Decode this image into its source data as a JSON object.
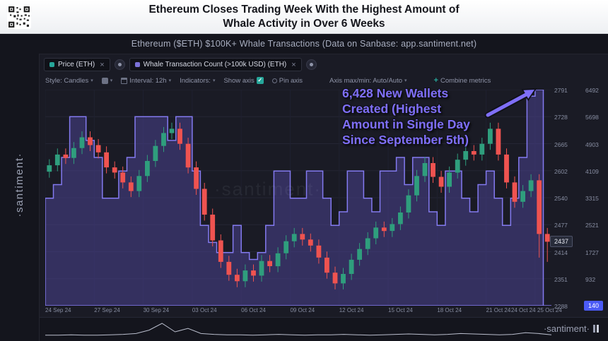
{
  "header": {
    "title_line1": "Ethereum Closes Trading Week With the Highest Amount of",
    "title_line2": "Whale Activity in Over 6 Weeks"
  },
  "subtitle": "Ethereum ($ETH) $100K+ Whale Transactions (Data on Sanbase: app.santiment.net)",
  "sidebar": {
    "brand": "·santiment·"
  },
  "watermark": "·santiment·",
  "footer": {
    "brand": "·santiment·"
  },
  "icons": {
    "caret": "▾",
    "close": "×",
    "check": "✓",
    "plus": "+"
  },
  "metric_chips": [
    {
      "label": "Price (ETH)",
      "color": "#26a69a"
    },
    {
      "label": "Whale Transaction Count (>100k USD) (ETH)",
      "color": "#7b72d9"
    }
  ],
  "toolbar": {
    "style": "Style: Candles",
    "interval": "Interval: 12h",
    "indicators": "Indicators:",
    "show_axis": "Show axis",
    "pin_axis": "Pin axis",
    "axis_maxmin": "Axis max/min: Auto/Auto",
    "combine": "Combine metrics"
  },
  "annotation": {
    "lines": [
      "6,428 New Wallets",
      "Created (Highest",
      "Amount in Single Day",
      "Since September 5th)"
    ],
    "color": "#7f6ff8"
  },
  "badges": {
    "price": "2437",
    "count": "140"
  },
  "colors": {
    "count_badge": "#4b5bf7",
    "checkbox": "#26a69a",
    "background": "#1a1b25"
  },
  "axes": {
    "price_ticks": [
      "2791",
      "2728",
      "2665",
      "2602",
      "2540",
      "2477",
      "2414",
      "2351",
      "2288"
    ],
    "count_ticks": [
      "6492",
      "5698",
      "4903",
      "4109",
      "3315",
      "2521",
      "1727",
      "932",
      "140"
    ],
    "x_ticks": [
      "24 Sep 24",
      "27 Sep 24",
      "30 Sep 24",
      "03 Oct 24",
      "06 Oct 24",
      "09 Oct 24",
      "12 Oct 24",
      "15 Oct 24",
      "18 Oct 24",
      "21 Oct 24",
      "24 Oct 24",
      "25 Oct 24"
    ]
  },
  "chart_data": {
    "type": "candlestick+area",
    "title": "Ethereum ($ETH) $100K+ Whale Transactions",
    "interval": "12h",
    "series": [
      {
        "name": "Price (ETH)",
        "type": "candlestick",
        "axis": "left"
      },
      {
        "name": "Whale Transaction Count (>100k USD) (ETH)",
        "type": "area",
        "axis": "right"
      }
    ],
    "date_range": [
      "24 Sep 24",
      "25 Oct 24"
    ],
    "price_axis_range": [
      2288,
      2791
    ],
    "count_axis_range": [
      140,
      6492
    ],
    "up_color": "#2f9e7d",
    "down_color": "#ef5350",
    "area_fill": "#4a4190",
    "area_stroke": "#837af0",
    "tick_indices": [
      0,
      6,
      12,
      18,
      24,
      30,
      36,
      42,
      48,
      54,
      60,
      62
    ],
    "candles": [
      [
        2600,
        2629,
        2586,
        2615
      ],
      [
        2615,
        2654,
        2601,
        2640
      ],
      [
        2640,
        2654,
        2618,
        2632
      ],
      [
        2632,
        2669,
        2618,
        2655
      ],
      [
        2655,
        2694,
        2641,
        2680
      ],
      [
        2680,
        2694,
        2648,
        2662
      ],
      [
        2662,
        2676,
        2631,
        2645
      ],
      [
        2645,
        2659,
        2596,
        2610
      ],
      [
        2610,
        2624,
        2584,
        2598
      ],
      [
        2598,
        2612,
        2561,
        2575
      ],
      [
        2575,
        2589,
        2541,
        2555
      ],
      [
        2555,
        2604,
        2541,
        2590
      ],
      [
        2590,
        2639,
        2576,
        2625
      ],
      [
        2625,
        2674,
        2611,
        2660
      ],
      [
        2660,
        2704,
        2646,
        2690
      ],
      [
        2690,
        2714,
        2676,
        2700
      ],
      [
        2700,
        2714,
        2651,
        2665
      ],
      [
        2665,
        2679,
        2596,
        2610
      ],
      [
        2610,
        2624,
        2546,
        2560
      ],
      [
        2560,
        2574,
        2486,
        2500
      ],
      [
        2500,
        2514,
        2426,
        2440
      ],
      [
        2440,
        2454,
        2376,
        2390
      ],
      [
        2390,
        2404,
        2346,
        2360
      ],
      [
        2360,
        2374,
        2331,
        2345
      ],
      [
        2345,
        2384,
        2331,
        2370
      ],
      [
        2370,
        2384,
        2344,
        2358
      ],
      [
        2358,
        2406,
        2344,
        2392
      ],
      [
        2392,
        2406,
        2366,
        2380
      ],
      [
        2380,
        2424,
        2366,
        2410
      ],
      [
        2410,
        2452,
        2396,
        2438
      ],
      [
        2438,
        2469,
        2424,
        2455
      ],
      [
        2455,
        2469,
        2428,
        2442
      ],
      [
        2442,
        2456,
        2414,
        2428
      ],
      [
        2428,
        2442,
        2386,
        2400
      ],
      [
        2400,
        2414,
        2351,
        2365
      ],
      [
        2365,
        2379,
        2326,
        2340
      ],
      [
        2340,
        2376,
        2326,
        2362
      ],
      [
        2362,
        2409,
        2348,
        2395
      ],
      [
        2395,
        2434,
        2381,
        2420
      ],
      [
        2420,
        2459,
        2406,
        2445
      ],
      [
        2445,
        2484,
        2431,
        2470
      ],
      [
        2470,
        2484,
        2448,
        2462
      ],
      [
        2462,
        2492,
        2448,
        2478
      ],
      [
        2478,
        2519,
        2464,
        2505
      ],
      [
        2505,
        2559,
        2491,
        2545
      ],
      [
        2545,
        2604,
        2531,
        2590
      ],
      [
        2590,
        2634,
        2576,
        2620
      ],
      [
        2620,
        2634,
        2574,
        2588
      ],
      [
        2588,
        2602,
        2551,
        2565
      ],
      [
        2565,
        2612,
        2551,
        2598
      ],
      [
        2598,
        2642,
        2584,
        2628
      ],
      [
        2628,
        2662,
        2614,
        2648
      ],
      [
        2648,
        2662,
        2626,
        2640
      ],
      [
        2640,
        2679,
        2626,
        2665
      ],
      [
        2665,
        2714,
        2651,
        2700
      ],
      [
        2700,
        2714,
        2626,
        2640
      ],
      [
        2640,
        2654,
        2561,
        2575
      ],
      [
        2575,
        2589,
        2516,
        2530
      ],
      [
        2530,
        2569,
        2516,
        2555
      ],
      [
        2555,
        2594,
        2541,
        2580
      ],
      [
        2580,
        2594,
        2400,
        2455
      ],
      [
        2455,
        2469,
        2390,
        2437
      ]
    ],
    "whale_counts": [
      3300,
      3700,
      4500,
      5700,
      5700,
      5000,
      4500,
      3300,
      3300,
      4100,
      4500,
      5700,
      5700,
      5700,
      5700,
      5000,
      5700,
      5700,
      4100,
      2500,
      2000,
      1700,
      1700,
      2500,
      1700,
      1500,
      1700,
      2500,
      4100,
      4100,
      3300,
      3300,
      4100,
      4100,
      3300,
      2500,
      2900,
      4100,
      4100,
      3300,
      2900,
      4100,
      4100,
      4500,
      3700,
      4500,
      4500,
      2900,
      2500,
      4100,
      4100,
      3300,
      2900,
      3700,
      4100,
      3300,
      2500,
      3300,
      4500,
      6300,
      6492,
      140
    ],
    "timeline_sparkline": [
      2,
      2,
      3,
      2,
      2,
      3,
      4,
      6,
      14,
      30,
      10,
      18,
      6,
      4,
      3,
      3,
      2,
      3,
      4,
      3,
      2,
      3,
      3,
      4,
      3,
      2,
      3,
      4,
      5,
      4,
      3,
      4,
      6,
      5,
      4,
      3,
      4,
      8,
      6,
      3
    ]
  }
}
